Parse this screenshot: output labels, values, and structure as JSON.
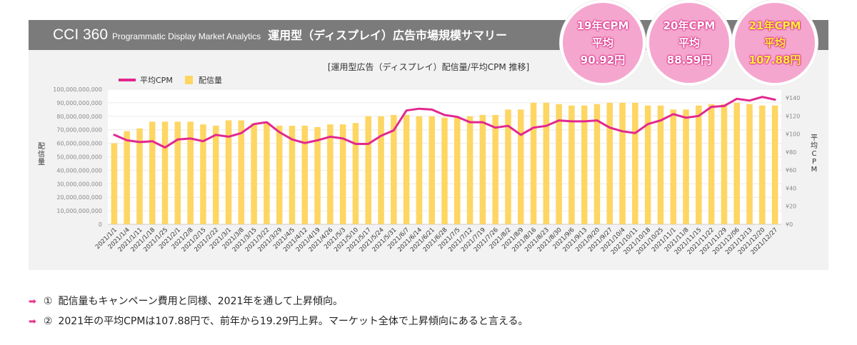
{
  "header": {
    "brand": "CCI 360",
    "subtitle": "Programmatic Display Market Analytics",
    "title": "運用型（ディスプレイ）広告市場規模サマリー"
  },
  "bubbles": [
    {
      "line1": "19年CPM",
      "line2": "平均",
      "line3": "90.92円",
      "highlight": false
    },
    {
      "line1": "20年CPM",
      "line2": "平均",
      "line3": "88.59円",
      "highlight": false
    },
    {
      "line1": "21年CPM",
      "line2": "平均",
      "line3": "107.88円",
      "highlight": true
    }
  ],
  "colors": {
    "bar": "#fdd663",
    "line": "#e2288f",
    "header_bg": "#7b7b7b",
    "panel_bg": "#f2f2f2",
    "bubble_bg": "#f5a6cf",
    "arrow": "#e8338d"
  },
  "chart_data": {
    "type": "bar",
    "title": "[運用型広告（ディスプレイ）配信量/平均CPM 推移]",
    "legend": [
      {
        "name": "平均CPM",
        "type": "line"
      },
      {
        "name": "配信量",
        "type": "bar"
      }
    ],
    "legend_position": "top-left",
    "xlabel": "",
    "ylabel": "配信量",
    "y2label": "平均CPM",
    "ylim": [
      0,
      100000000000
    ],
    "y2lim": [
      0,
      140
    ],
    "yticks": [
      "0",
      "10,000,000,000",
      "20,000,000,000",
      "30,000,000,000",
      "40,000,000,000",
      "50,000,000,000",
      "60,000,000,000",
      "70,000,000,000",
      "80,000,000,000",
      "90,000,000,000",
      "100,000,000,000"
    ],
    "y2ticks": [
      "¥0",
      "¥20",
      "¥40",
      "¥60",
      "¥80",
      "¥100",
      "¥120",
      "¥140"
    ],
    "grid": true,
    "categories": [
      "2021/1/1",
      "2021/1/4",
      "2021/1/11",
      "2021/1/18",
      "2021/1/25",
      "2021/2/1",
      "2021/2/8",
      "2021/2/15",
      "2021/2/22",
      "2021/3/1",
      "2021/3/8",
      "2021/3/15",
      "2021/3/22",
      "2021/3/29",
      "2021/4/5",
      "2021/4/12",
      "2021/4/19",
      "2021/4/26",
      "2021/5/3",
      "2021/5/10",
      "2021/5/17",
      "2021/5/24",
      "2021/5/31",
      "2021/6/7",
      "2021/6/14",
      "2021/6/21",
      "2021/6/28",
      "2021/7/5",
      "2021/7/12",
      "2021/7/19",
      "2021/7/26",
      "2021/8/2",
      "2021/8/9",
      "2021/8/16",
      "2021/8/23",
      "2021/8/30",
      "2021/9/6",
      "2021/9/13",
      "2021/9/20",
      "2021/9/27",
      "2021/10/4",
      "2021/10/11",
      "2021/10/18",
      "2021/10/25",
      "2021/11/1",
      "2021/11/8",
      "2021/11/15",
      "2021/11/22",
      "2021/11/29",
      "2021/12/06",
      "2021/12/13",
      "2021/12/20",
      "2021/12/27"
    ],
    "series": [
      {
        "name": "配信量",
        "type": "bar",
        "axis": "left",
        "values": [
          60000000000,
          69000000000,
          71000000000,
          76000000000,
          76000000000,
          76000000000,
          76000000000,
          74000000000,
          73000000000,
          77000000000,
          77000000000,
          75000000000,
          75000000000,
          73000000000,
          73000000000,
          73000000000,
          72000000000,
          74000000000,
          74000000000,
          75000000000,
          80000000000,
          80000000000,
          81000000000,
          81000000000,
          80000000000,
          80000000000,
          79000000000,
          79000000000,
          80000000000,
          81000000000,
          81000000000,
          85000000000,
          85000000000,
          90000000000,
          90000000000,
          89000000000,
          88000000000,
          88000000000,
          89000000000,
          90000000000,
          90000000000,
          90000000000,
          88000000000,
          88000000000,
          85000000000,
          85000000000,
          88000000000,
          89000000000,
          89000000000,
          90000000000,
          89000000000,
          88000000000,
          88000000000
        ]
      },
      {
        "name": "平均CPM",
        "type": "line",
        "axis": "right",
        "values": [
          99,
          93,
          91,
          92,
          85,
          94,
          95,
          92,
          99,
          97,
          101,
          111,
          113,
          102,
          94,
          90,
          93,
          97,
          95,
          89,
          89,
          98,
          104,
          126,
          128,
          127,
          121,
          119,
          113,
          113,
          107,
          109,
          99,
          107,
          109,
          115,
          114,
          114,
          115,
          107,
          103,
          101,
          111,
          115,
          122,
          118,
          120,
          130,
          131,
          139,
          137,
          141,
          138
        ]
      }
    ]
  },
  "notes": [
    {
      "arrow": "➡",
      "num": "①",
      "text": "配信量もキャンペーン費用と同様、2021年を通して上昇傾向。"
    },
    {
      "arrow": "➡",
      "num": "②",
      "text": "2021年の平均CPMは107.88円で、前年から19.29円上昇。マーケット全体で上昇傾向にあると言える。"
    }
  ]
}
